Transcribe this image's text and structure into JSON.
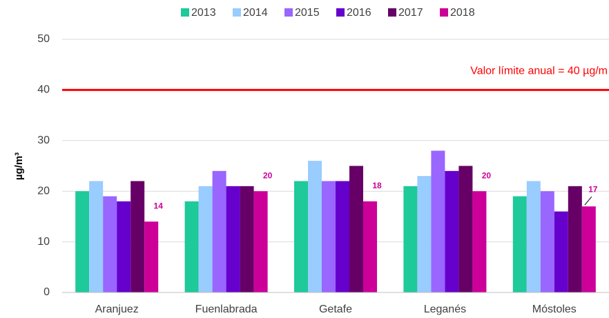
{
  "chart_data": {
    "type": "bar",
    "y_label": "µg/m³",
    "categories": [
      "Aranjuez",
      "Fuenlabrada",
      "Getafe",
      "Leganés",
      "Móstoles"
    ],
    "series": [
      {
        "name": "2013",
        "color": "#1ec99a",
        "values": [
          20,
          18,
          22,
          21,
          19
        ]
      },
      {
        "name": "2014",
        "color": "#99ccff",
        "values": [
          22,
          21,
          26,
          23,
          22
        ]
      },
      {
        "name": "2015",
        "color": "#9966ff",
        "values": [
          19,
          24,
          22,
          28,
          20
        ]
      },
      {
        "name": "2016",
        "color": "#6600cc",
        "values": [
          18,
          21,
          22,
          24,
          16
        ]
      },
      {
        "name": "2017",
        "color": "#660066",
        "values": [
          22,
          21,
          25,
          25,
          21
        ]
      },
      {
        "name": "2018",
        "color": "#cc0099",
        "values": [
          14,
          20,
          18,
          20,
          17
        ]
      }
    ],
    "data_labels_series": 5,
    "reference_line": {
      "value": 40,
      "label": "Valor límite anual = 40 µg/m",
      "color": "#ff0000"
    },
    "ylim": [
      0,
      50
    ],
    "yticks": [
      0,
      10,
      20,
      30,
      40,
      50
    ],
    "grid": true,
    "legend": "top"
  }
}
